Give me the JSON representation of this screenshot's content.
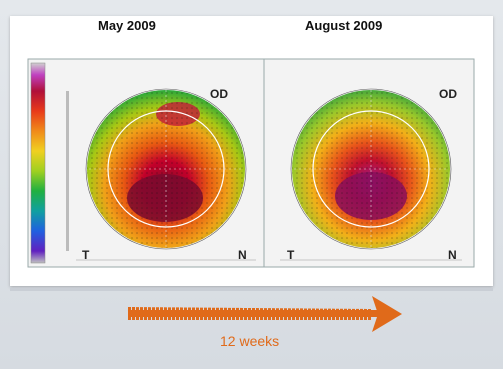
{
  "dates": {
    "left": "May 2009",
    "right": "August 2009"
  },
  "eye": {
    "left": "OD",
    "right": "OD"
  },
  "sides": {
    "temporal": "T",
    "nasal": "N"
  },
  "duration": "12 weeks",
  "colors": {
    "arrow": "#e06a1a",
    "text_orange": "#e06a1a"
  }
}
